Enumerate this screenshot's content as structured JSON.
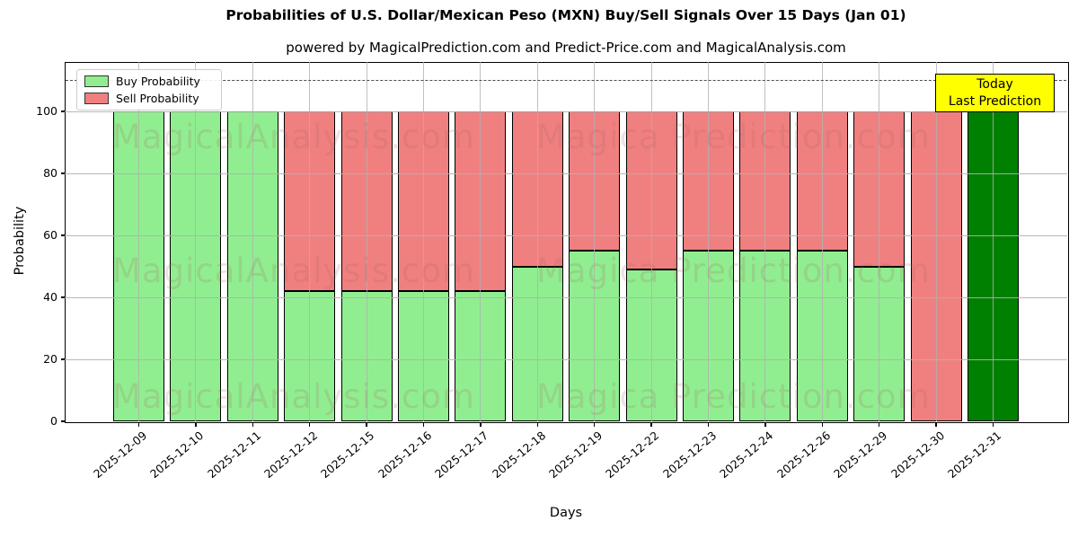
{
  "header": {
    "title": "Probabilities of U.S. Dollar/Mexican Peso (MXN) Buy/Sell Signals Over 15 Days (Jan 01)",
    "subtitle": "powered by MagicalPrediction.com and Predict-Price.com and MagicalAnalysis.com"
  },
  "axes": {
    "xlabel": "Days",
    "ylabel": "Probability"
  },
  "legend": {
    "items": [
      {
        "label": "Buy Probability",
        "color": "#90ee90"
      },
      {
        "label": "Sell Probability",
        "color": "#f08080"
      }
    ]
  },
  "annotation": {
    "line1": "Today",
    "line2": "Last Prediction",
    "bg_color": "#ffff00"
  },
  "watermark": {
    "left_text": "MagicalAnalysis.com",
    "right_text": "Magica Prediction.com"
  },
  "chart_data": {
    "type": "bar",
    "stacked": true,
    "title": "Probabilities of U.S. Dollar/Mexican Peso (MXN) Buy/Sell Signals Over 15 Days (Jan 01)",
    "xlabel": "Days",
    "ylabel": "Probability",
    "categories": [
      "2025-12-09",
      "2025-12-10",
      "2025-12-11",
      "2025-12-12",
      "2025-12-15",
      "2025-12-16",
      "2025-12-17",
      "2025-12-18",
      "2025-12-19",
      "2025-12-22",
      "2025-12-23",
      "2025-12-24",
      "2025-12-26",
      "2025-12-29",
      "2025-12-30",
      "2025-12-31"
    ],
    "series": [
      {
        "name": "Buy Probability",
        "color": "#90ee90",
        "values": [
          100,
          100,
          100,
          42,
          42,
          42,
          42,
          50,
          55,
          49,
          55,
          55,
          55,
          50,
          0,
          100
        ]
      },
      {
        "name": "Sell Probability",
        "color": "#f08080",
        "values": [
          0,
          0,
          0,
          58,
          58,
          58,
          58,
          50,
          45,
          51,
          45,
          45,
          45,
          50,
          100,
          0
        ]
      }
    ],
    "today_index": 15,
    "today_buy_color": "#008000",
    "ylim": [
      0,
      116
    ],
    "yticks": [
      0,
      20,
      40,
      60,
      80,
      100
    ],
    "threshold_line": {
      "y": 110,
      "style": "dashed",
      "color": "#4d4d4d"
    },
    "grid": true,
    "legend_position": "upper left",
    "bar_edge_color": "#000000"
  }
}
